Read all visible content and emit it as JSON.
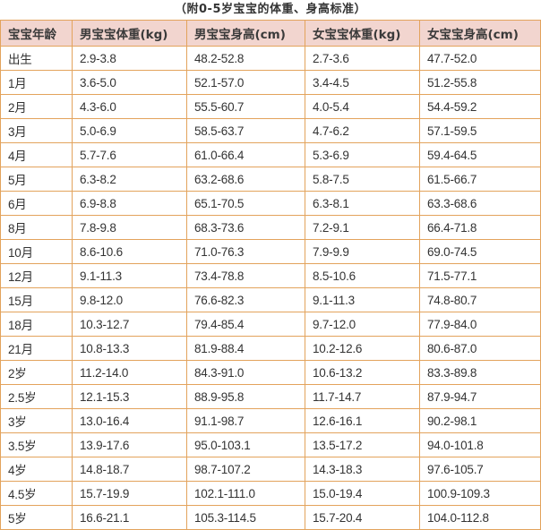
{
  "title": "（附0-5岁宝宝的体重、身高标准）",
  "colors": {
    "header_bg": "#f2d5cf",
    "border": "#e3a35c",
    "text": "#333333"
  },
  "table": {
    "headers": [
      "宝宝年龄",
      "男宝宝体重(kg)",
      "男宝宝身高(cm)",
      "女宝宝体重(kg)",
      "女宝宝身高(cm)"
    ],
    "rows": [
      [
        "出生",
        "2.9-3.8",
        "48.2-52.8",
        "2.7-3.6",
        "47.7-52.0"
      ],
      [
        "1月",
        "3.6-5.0",
        "52.1-57.0",
        "3.4-4.5",
        "51.2-55.8"
      ],
      [
        "2月",
        "4.3-6.0",
        "55.5-60.7",
        "4.0-5.4",
        "54.4-59.2"
      ],
      [
        "3月",
        "5.0-6.9",
        "58.5-63.7",
        "4.7-6.2",
        "57.1-59.5"
      ],
      [
        "4月",
        "5.7-7.6",
        "61.0-66.4",
        "5.3-6.9",
        "59.4-64.5"
      ],
      [
        "5月",
        "6.3-8.2",
        "63.2-68.6",
        "5.8-7.5",
        "61.5-66.7"
      ],
      [
        "6月",
        "6.9-8.8",
        "65.1-70.5",
        "6.3-8.1",
        "63.3-68.6"
      ],
      [
        "8月",
        "7.8-9.8",
        "68.3-73.6",
        "7.2-9.1",
        "66.4-71.8"
      ],
      [
        "10月",
        "8.6-10.6",
        "71.0-76.3",
        "7.9-9.9",
        "69.0-74.5"
      ],
      [
        "12月",
        "9.1-11.3",
        "73.4-78.8",
        "8.5-10.6",
        "71.5-77.1"
      ],
      [
        "15月",
        "9.8-12.0",
        "76.6-82.3",
        "9.1-11.3",
        "74.8-80.7"
      ],
      [
        "18月",
        "10.3-12.7",
        "79.4-85.4",
        "9.7-12.0",
        "77.9-84.0"
      ],
      [
        "21月",
        "10.8-13.3",
        "81.9-88.4",
        "10.2-12.6",
        "80.6-87.0"
      ],
      [
        "2岁",
        "11.2-14.0",
        "84.3-91.0",
        "10.6-13.2",
        "83.3-89.8"
      ],
      [
        "2.5岁",
        "12.1-15.3",
        "88.9-95.8",
        "11.7-14.7",
        "87.9-94.7"
      ],
      [
        "3岁",
        "13.0-16.4",
        "91.1-98.7",
        "12.6-16.1",
        "90.2-98.1"
      ],
      [
        "3.5岁",
        "13.9-17.6",
        "95.0-103.1",
        "13.5-17.2",
        "94.0-101.8"
      ],
      [
        "4岁",
        "14.8-18.7",
        "98.7-107.2",
        "14.3-18.3",
        "97.6-105.7"
      ],
      [
        "4.5岁",
        "15.7-19.9",
        "102.1-111.0",
        "15.0-19.4",
        "100.9-109.3"
      ],
      [
        "5岁",
        "16.6-21.1",
        "105.3-114.5",
        "15.7-20.4",
        "104.0-112.8"
      ]
    ]
  }
}
